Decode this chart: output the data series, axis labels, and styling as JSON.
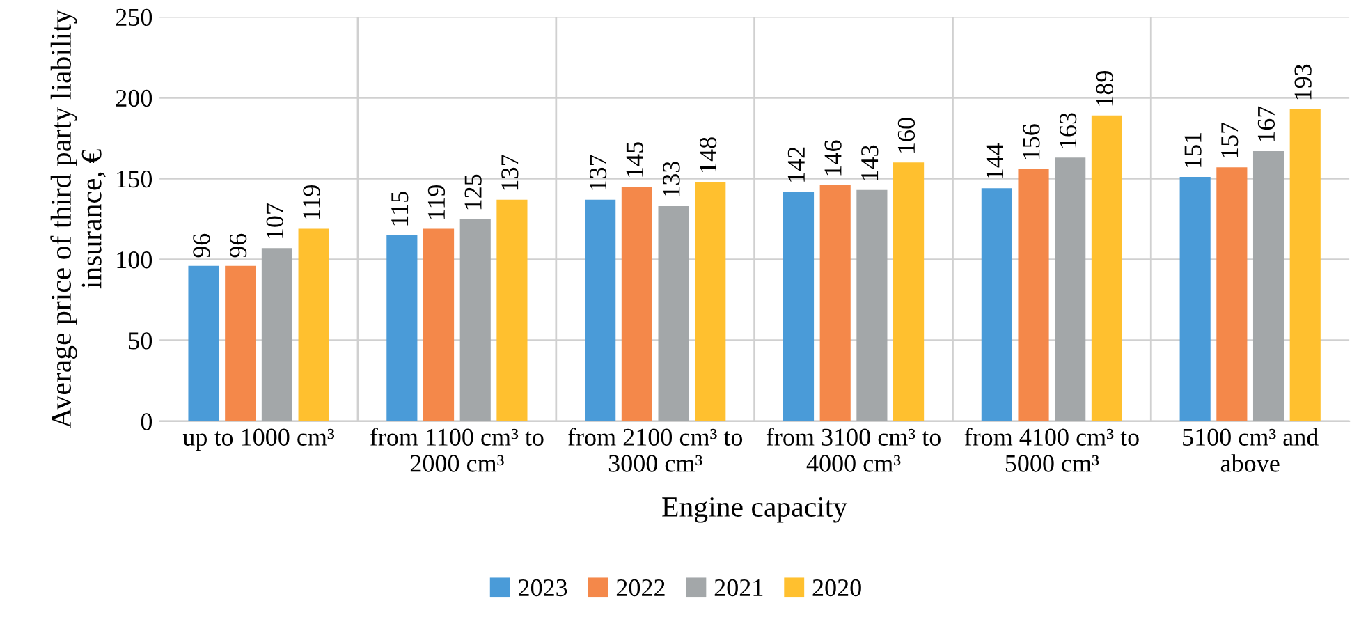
{
  "chart_data": {
    "type": "bar",
    "xlabel": "Engine capacity",
    "ylabel": "Average price of third party liability\ninsurance, €",
    "categories": [
      "up to 1000 cm³",
      "from 1100 cm³ to\n2000 cm³",
      "from 2100 cm³ to\n3000 cm³",
      "from 3100 cm³ to\n4000 cm³",
      "from 4100 cm³ to\n5000 cm³",
      "5100 cm³ and\nabove"
    ],
    "series": [
      {
        "name": "2023",
        "color": "#4a9bd8",
        "values": [
          96,
          115,
          137,
          142,
          144,
          151
        ]
      },
      {
        "name": "2022",
        "color": "#f4884a",
        "values": [
          96,
          119,
          145,
          146,
          156,
          157
        ]
      },
      {
        "name": "2021",
        "color": "#a3a7a9",
        "values": [
          107,
          125,
          133,
          143,
          163,
          167
        ]
      },
      {
        "name": "2020",
        "color": "#ffc02f",
        "values": [
          119,
          137,
          148,
          160,
          189,
          193
        ]
      }
    ],
    "ylim": [
      0,
      250
    ],
    "yticks": [
      0,
      50,
      100,
      150,
      200,
      250
    ],
    "grid": true,
    "legend": "bottom",
    "data_labels": true
  }
}
